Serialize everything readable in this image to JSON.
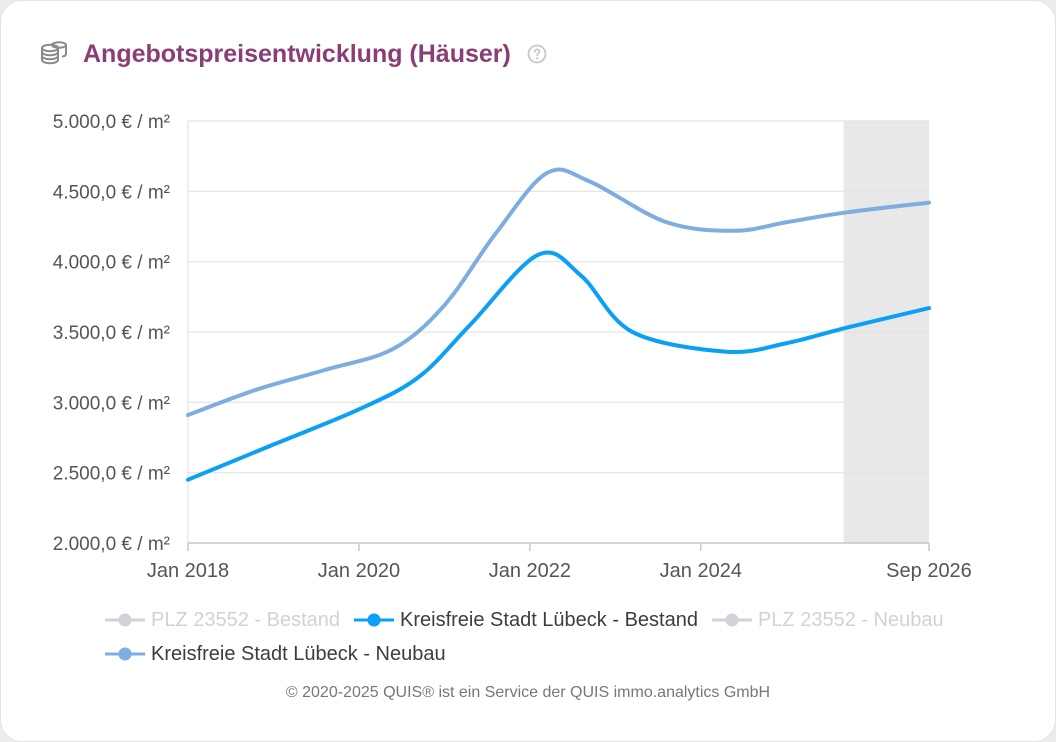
{
  "header": {
    "title": "Angebotspreisentwicklung (Häuser)",
    "icon": "coins-icon",
    "help_icon": "help-circle-icon"
  },
  "chart_data": {
    "type": "line",
    "title": "Angebotspreisentwicklung (Häuser)",
    "xlabel": "",
    "ylabel": "",
    "x_ticks": [
      "Jan 2018",
      "Jan 2020",
      "Jan 2022",
      "Jan 2024",
      "Sep 2026"
    ],
    "x_range_years": [
      2018.0,
      2026.67
    ],
    "y_ticks": [
      "2.000,0 € / m²",
      "2.500,0 € / m²",
      "3.000,0 € / m²",
      "3.500,0 € / m²",
      "4.000,0 € / m²",
      "4.500,0 € / m²",
      "5.000,0 € / m²"
    ],
    "ylim": [
      2000,
      5000
    ],
    "y_tick_values": [
      2000,
      2500,
      3000,
      3500,
      4000,
      4500,
      5000
    ],
    "grid": "horizontal",
    "forecast_band_start_year": 2025.67,
    "legend_position": "bottom",
    "series": [
      {
        "name": "PLZ 23552 - Bestand",
        "visible": false,
        "color": "#cfd3d8",
        "points": []
      },
      {
        "name": "Kreisfreie Stadt Lübeck - Bestand",
        "visible": true,
        "color": "#0aa0f5",
        "points": [
          [
            2018.0,
            2450
          ],
          [
            2019.0,
            2700
          ],
          [
            2020.0,
            2950
          ],
          [
            2020.7,
            3180
          ],
          [
            2021.3,
            3550
          ],
          [
            2022.1,
            4050
          ],
          [
            2022.6,
            3900
          ],
          [
            2023.2,
            3500
          ],
          [
            2024.3,
            3360
          ],
          [
            2025.0,
            3420
          ],
          [
            2025.7,
            3530
          ],
          [
            2026.67,
            3670
          ]
        ]
      },
      {
        "name": "PLZ 23552 - Neubau",
        "visible": false,
        "color": "#cfd3d8",
        "points": []
      },
      {
        "name": "Kreisfreie Stadt Lübeck - Neubau",
        "visible": true,
        "color": "#7eaee0",
        "points": [
          [
            2018.0,
            2910
          ],
          [
            2018.8,
            3090
          ],
          [
            2019.6,
            3230
          ],
          [
            2020.4,
            3380
          ],
          [
            2021.0,
            3690
          ],
          [
            2021.6,
            4200
          ],
          [
            2022.2,
            4630
          ],
          [
            2022.7,
            4570
          ],
          [
            2023.6,
            4280
          ],
          [
            2024.4,
            4220
          ],
          [
            2025.0,
            4280
          ],
          [
            2025.7,
            4350
          ],
          [
            2026.67,
            4420
          ]
        ]
      }
    ]
  },
  "legend": {
    "items": [
      {
        "label": "PLZ 23552 - Bestand",
        "color": "#cfd3d8",
        "active": false
      },
      {
        "label": "Kreisfreie Stadt Lübeck - Bestand",
        "color": "#0aa0f5",
        "active": true
      },
      {
        "label": "PLZ 23552 - Neubau",
        "color": "#cfd3d8",
        "active": false
      },
      {
        "label": "Kreisfreie Stadt Lübeck - Neubau",
        "color": "#7eaee0",
        "active": true
      }
    ]
  },
  "footer": {
    "text": "© 2020-2025 QUIS® ist ein Service der QUIS immo.analytics GmbH"
  },
  "colors": {
    "title": "#8b3d75",
    "forecast_band": "#e8e8e8",
    "grid": "#e3e3e3",
    "axis_text": "#555555"
  }
}
